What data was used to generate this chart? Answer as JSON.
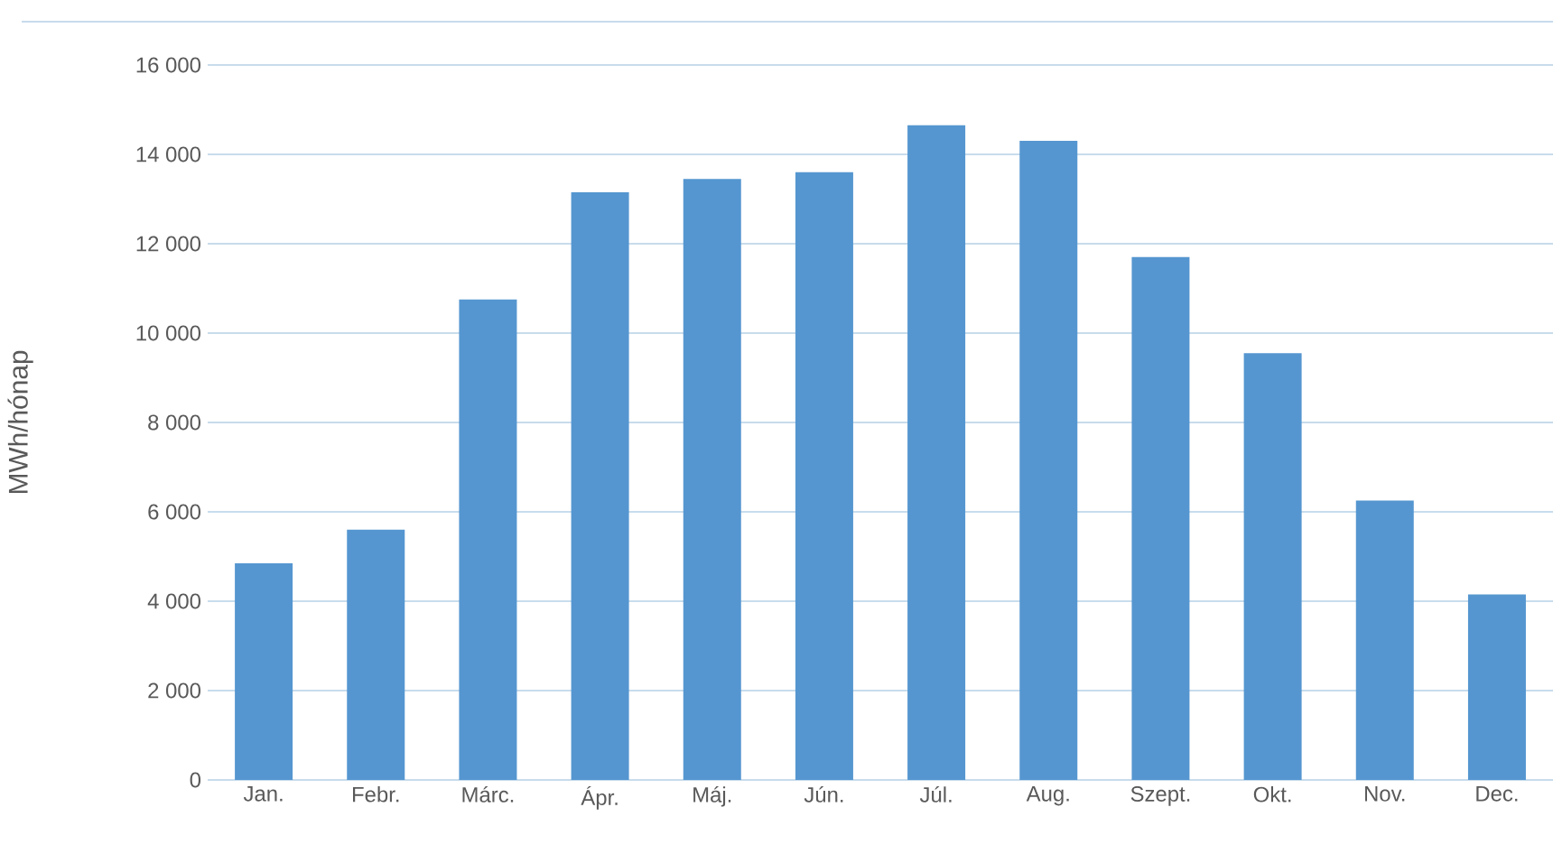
{
  "chart_data": {
    "type": "bar",
    "ylabel": "MWh/hónap",
    "categories": [
      "Jan.",
      "Febr.",
      "Márc.",
      "Ápr.",
      "Máj.",
      "Jún.",
      "Júl.",
      "Aug.",
      "Szept.",
      "Okt.",
      "Nov.",
      "Dec."
    ],
    "values": [
      4850,
      5600,
      10750,
      13150,
      13450,
      13600,
      14650,
      14300,
      11700,
      9550,
      6250,
      4150
    ],
    "color": "#5596d0",
    "ylim": [
      0,
      16000
    ],
    "yticks": [
      {
        "value": 0,
        "label": "0"
      },
      {
        "value": 2000,
        "label": "2 000"
      },
      {
        "value": 4000,
        "label": "4 000"
      },
      {
        "value": 6000,
        "label": "6 000"
      },
      {
        "value": 8000,
        "label": "8 000"
      },
      {
        "value": 10000,
        "label": "10 000"
      },
      {
        "value": 12000,
        "label": "12 000"
      },
      {
        "value": 14000,
        "label": "14 000"
      },
      {
        "value": 16000,
        "label": "16 000"
      }
    ],
    "grid": "y"
  }
}
